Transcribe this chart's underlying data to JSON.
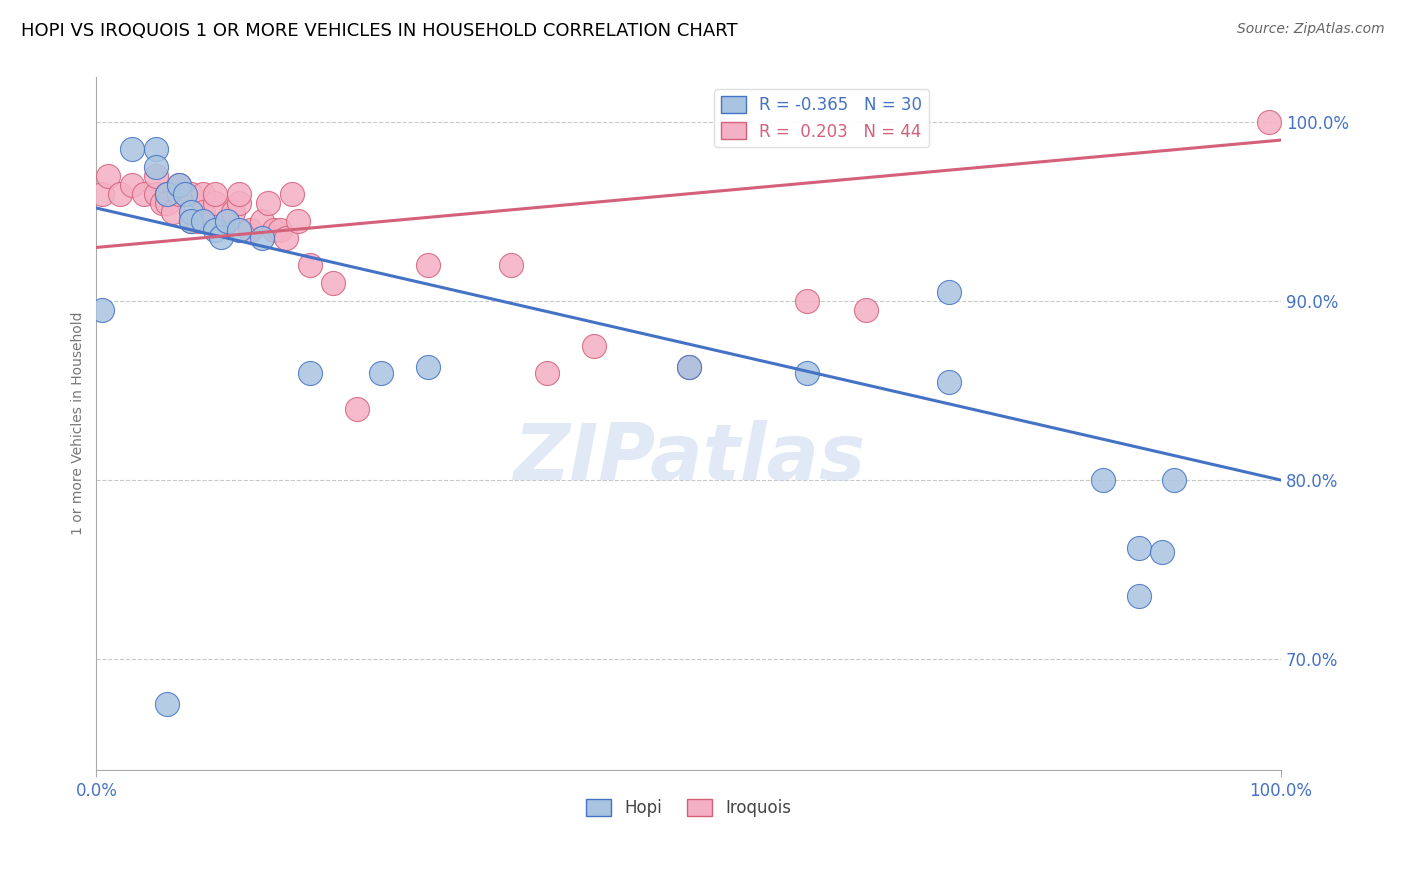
{
  "title": "HOPI VS IROQUOIS 1 OR MORE VEHICLES IN HOUSEHOLD CORRELATION CHART",
  "source": "Source: ZipAtlas.com",
  "ylabel": "1 or more Vehicles in Household",
  "watermark": "ZIPatlas",
  "hopi_R": -0.365,
  "hopi_N": 30,
  "iroquois_R": 0.203,
  "iroquois_N": 44,
  "xlim": [
    0.0,
    1.0
  ],
  "ylim": [
    0.638,
    1.025
  ],
  "xtick_labels": [
    "0.0%",
    "100.0%"
  ],
  "xtick_vals": [
    0.0,
    1.0
  ],
  "ytick_labels": [
    "70.0%",
    "80.0%",
    "90.0%",
    "100.0%"
  ],
  "ytick_vals": [
    0.7,
    0.8,
    0.9,
    1.0
  ],
  "hopi_color": "#a8c4e0",
  "hopi_line_color": "#4472c4",
  "iroquois_color": "#f4b0c4",
  "iroquois_line_color": "#d4607a",
  "background_color": "#ffffff",
  "grid_color": "#bbbbbb",
  "hopi_x": [
    0.005,
    0.03,
    0.05,
    0.05,
    0.06,
    0.07,
    0.075,
    0.08,
    0.08,
    0.09,
    0.1,
    0.105,
    0.11,
    0.12,
    0.14,
    0.18,
    0.24,
    0.28,
    0.5,
    0.6,
    0.72,
    0.72,
    0.85,
    0.88,
    0.88,
    0.9,
    0.91,
    0.06
  ],
  "hopi_y": [
    0.895,
    0.985,
    0.985,
    0.975,
    0.96,
    0.965,
    0.96,
    0.95,
    0.945,
    0.945,
    0.94,
    0.936,
    0.945,
    0.94,
    0.935,
    0.86,
    0.86,
    0.863,
    0.863,
    0.86,
    0.905,
    0.855,
    0.8,
    0.762,
    0.735,
    0.76,
    0.8,
    0.675
  ],
  "iroquois_x": [
    0.005,
    0.01,
    0.02,
    0.03,
    0.04,
    0.05,
    0.05,
    0.055,
    0.06,
    0.06,
    0.065,
    0.07,
    0.07,
    0.08,
    0.08,
    0.085,
    0.09,
    0.09,
    0.1,
    0.1,
    0.11,
    0.115,
    0.12,
    0.12,
    0.13,
    0.14,
    0.145,
    0.15,
    0.155,
    0.16,
    0.165,
    0.17,
    0.18,
    0.2,
    0.22,
    0.28,
    0.35,
    0.38,
    0.42,
    0.5,
    0.6,
    0.65,
    0.99
  ],
  "iroquois_y": [
    0.96,
    0.97,
    0.96,
    0.965,
    0.96,
    0.96,
    0.97,
    0.955,
    0.96,
    0.955,
    0.95,
    0.96,
    0.965,
    0.96,
    0.945,
    0.945,
    0.96,
    0.95,
    0.955,
    0.96,
    0.945,
    0.95,
    0.955,
    0.96,
    0.94,
    0.945,
    0.955,
    0.94,
    0.94,
    0.935,
    0.96,
    0.945,
    0.92,
    0.91,
    0.84,
    0.92,
    0.92,
    0.86,
    0.875,
    0.863,
    0.9,
    0.895,
    1.0
  ],
  "hopi_trendline_x": [
    0.0,
    1.0
  ],
  "hopi_trendline_y": [
    0.952,
    0.8
  ],
  "iroquois_trendline_x": [
    0.0,
    1.0
  ],
  "iroquois_trendline_y": [
    0.93,
    0.99
  ]
}
